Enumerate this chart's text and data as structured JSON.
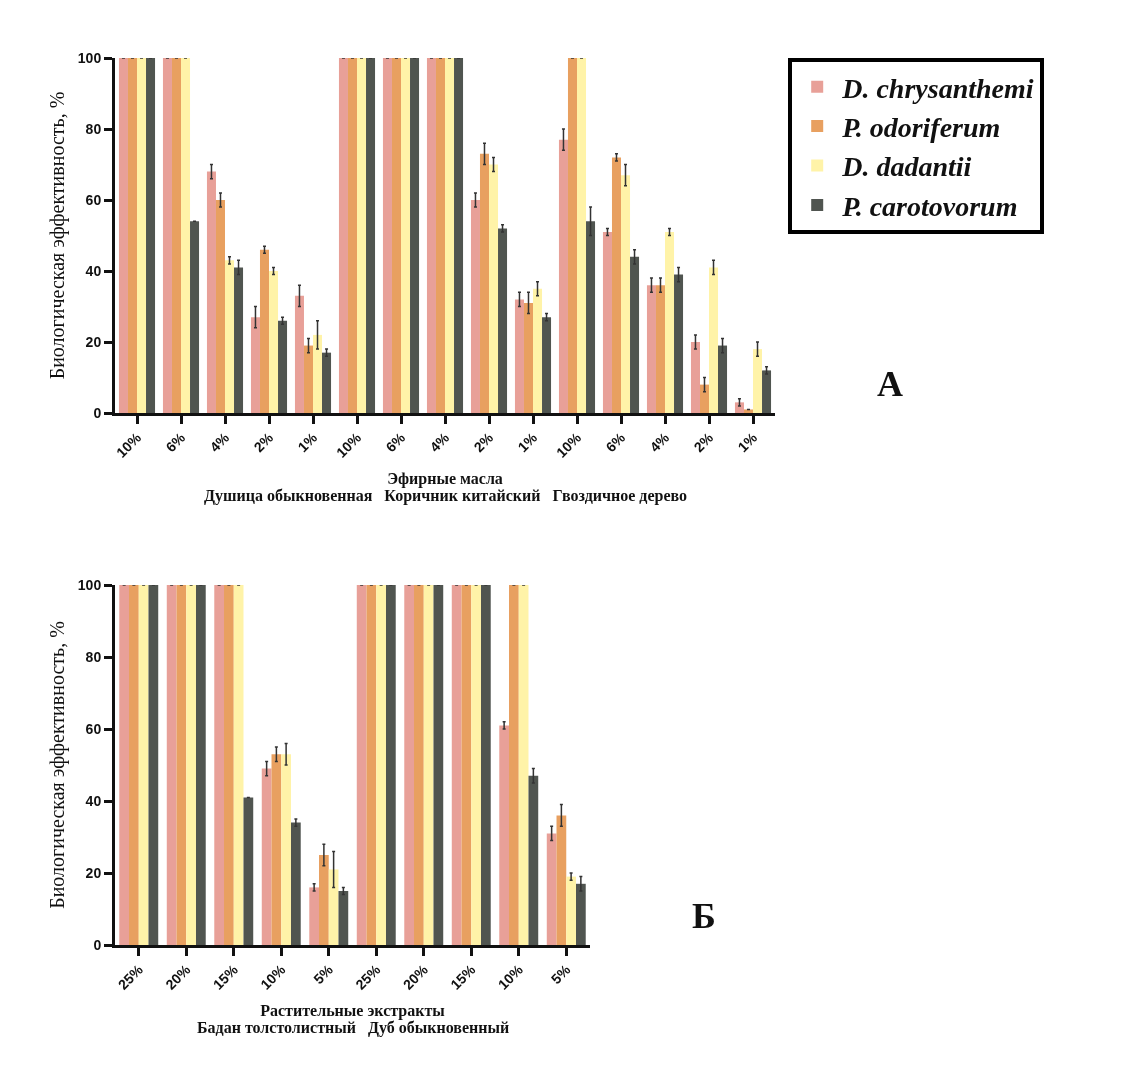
{
  "chart_data": [
    {
      "type": "bar",
      "xlabel": "Эфирные масла",
      "subtitle": "Душица обыкновенная   Коричник китайский   Гвоздичное дерево",
      "ylabel": "Биологическая эффективность, %",
      "annotations": [
        "А"
      ],
      "categories": [
        "10%",
        "6%",
        "4%",
        "2%",
        "1%",
        "10%",
        "6%",
        "4%",
        "2%",
        "1%",
        "10%",
        "6%",
        "4%",
        "2%",
        "1%"
      ],
      "series": [
        {
          "name": "D. chrysanthemi",
          "color": "#e8a098",
          "values": [
            100,
            100,
            68,
            27,
            33,
            100,
            100,
            100,
            60,
            32,
            77,
            51,
            36,
            20,
            3
          ],
          "errors": [
            null,
            null,
            2,
            3,
            3,
            null,
            null,
            null,
            2,
            2,
            3,
            1,
            2,
            2,
            1
          ]
        },
        {
          "name": "P. odoriferum",
          "color": "#e8a060",
          "values": [
            100,
            100,
            60,
            46,
            19,
            100,
            100,
            100,
            73,
            31,
            100,
            72,
            36,
            8,
            1
          ],
          "errors": [
            null,
            null,
            2,
            1,
            2,
            null,
            null,
            null,
            3,
            3,
            null,
            1,
            2,
            2,
            null
          ]
        },
        {
          "name": "D. dadantii",
          "color": "#fff3a8",
          "values": [
            100,
            100,
            43,
            40,
            22,
            100,
            100,
            100,
            70,
            35,
            100,
            67,
            51,
            41,
            18
          ],
          "errors": [
            null,
            null,
            1,
            1,
            4,
            null,
            null,
            null,
            2,
            2,
            null,
            3,
            1,
            2,
            2
          ]
        },
        {
          "name": "P. carotovorum",
          "color": "#505550",
          "values": [
            100,
            54,
            41,
            26,
            17,
            100,
            100,
            100,
            52,
            27,
            54,
            44,
            39,
            19,
            12
          ],
          "errors": [
            null,
            null,
            2,
            1,
            1,
            null,
            null,
            null,
            1,
            1,
            4,
            2,
            2,
            2,
            1
          ]
        }
      ],
      "ylim": [
        0,
        100
      ],
      "yticks": [
        0,
        20,
        40,
        60,
        80,
        100
      ],
      "grid": false,
      "legend": "top right"
    },
    {
      "type": "bar",
      "xlabel": "Растительные экстракты",
      "subtitle": "Бадан толстолистный   Дуб обыкновенный",
      "ylabel": "Биологическая эффективность, %",
      "annotations": [
        "Б"
      ],
      "categories": [
        "25%",
        "20%",
        "15%",
        "10%",
        "5%",
        "25%",
        "20%",
        "15%",
        "10%",
        "5%"
      ],
      "series": [
        {
          "color": "#e8a098",
          "values": [
            100,
            100,
            100,
            49,
            16,
            100,
            100,
            100,
            61,
            31
          ],
          "errors": [
            null,
            null,
            null,
            2,
            1,
            null,
            null,
            null,
            1,
            2
          ]
        },
        {
          "color": "#e8a060",
          "values": [
            100,
            100,
            100,
            53,
            25,
            100,
            100,
            100,
            100,
            36
          ],
          "errors": [
            null,
            null,
            null,
            2,
            3,
            null,
            null,
            null,
            null,
            3
          ]
        },
        {
          "color": "#fff3a8",
          "values": [
            100,
            100,
            100,
            53,
            21,
            100,
            100,
            100,
            100,
            19
          ],
          "errors": [
            null,
            null,
            null,
            3,
            5,
            null,
            null,
            null,
            null,
            1
          ]
        },
        {
          "color": "#505550",
          "values": [
            100,
            100,
            41,
            34,
            15,
            100,
            100,
            100,
            47,
            17
          ],
          "errors": [
            null,
            null,
            null,
            1,
            1,
            null,
            null,
            null,
            2,
            2
          ]
        }
      ],
      "ylim": [
        0,
        100
      ],
      "yticks": [
        0,
        20,
        40,
        60,
        80,
        100
      ],
      "grid": false,
      "legend": false
    }
  ]
}
